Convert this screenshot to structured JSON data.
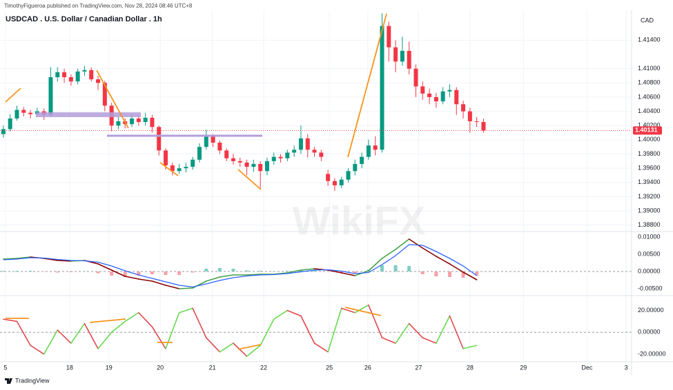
{
  "header": {
    "publisher": "TimothyFigueroa published on TradingView.com, Nov 28, 2024 08:46 UTC+8",
    "brand": "TradingView",
    "watermark": "WikiFX"
  },
  "chart_data": [
    {
      "type": "candlestick",
      "title": "USDCAD . U.S. Dollar / Canadian Dollar . 1h",
      "currency": "CAD",
      "up_color": "#089981",
      "down_color": "#f23645",
      "grid": true,
      "xlim": [
        -0.5,
        92.9
      ],
      "xticks": [
        {
          "value": 0.3,
          "label": "5"
        },
        {
          "value": 9.8,
          "label": "18"
        },
        {
          "value": 15.6,
          "label": "19"
        },
        {
          "value": 23.2,
          "label": "20"
        },
        {
          "value": 30.9,
          "label": "21"
        },
        {
          "value": 38.5,
          "label": "22"
        },
        {
          "value": 48.2,
          "label": "25"
        },
        {
          "value": 53.9,
          "label": "26"
        },
        {
          "value": 61.4,
          "label": "27"
        },
        {
          "value": 69,
          "label": "28"
        },
        {
          "value": 76.9,
          "label": "29"
        },
        {
          "value": 86.3,
          "label": "Dec"
        },
        {
          "value": 92.1,
          "label": "3"
        }
      ],
      "ylim": [
        1.3872,
        1.4182
      ],
      "yticks": [
        {
          "value": 1.414,
          "label": "1.41400"
        },
        {
          "value": 1.41,
          "label": "1.41000"
        },
        {
          "value": 1.408,
          "label": "1.40800"
        },
        {
          "value": 1.406,
          "label": "1.40600"
        },
        {
          "value": 1.404,
          "label": "1.40400"
        },
        {
          "value": 1.402,
          "label": "1.40200"
        },
        {
          "value": 1.4,
          "label": "1.40000"
        },
        {
          "value": 1.398,
          "label": "1.39800"
        },
        {
          "value": 1.396,
          "label": "1.39600"
        },
        {
          "value": 1.394,
          "label": "1.39400"
        },
        {
          "value": 1.392,
          "label": "1.39200"
        },
        {
          "value": 1.39,
          "label": "1.39000"
        },
        {
          "value": 1.388,
          "label": "1.38800"
        }
      ],
      "open": [
        1.4008,
        1.4015,
        1.403,
        1.4042,
        1.4038,
        1.4036,
        1.404,
        1.4035,
        1.4088,
        1.4095,
        1.4088,
        1.4082,
        1.4096,
        1.4098,
        1.4085,
        1.408,
        1.4048,
        1.402,
        1.4026,
        1.4022,
        1.403,
        1.4025,
        1.4031,
        1.4018,
        1.3985,
        1.3964,
        1.3956,
        1.396,
        1.3962,
        1.3972,
        1.399,
        1.4005,
        1.3996,
        1.3985,
        1.3974,
        1.397,
        1.3968,
        1.3962,
        1.3966,
        1.3956,
        1.397,
        1.3976,
        1.3974,
        1.3982,
        1.3986,
        1.4002,
        1.3986,
        1.3982,
        1.3952,
        1.3942,
        1.3936,
        1.3944,
        1.3956,
        1.3966,
        1.3976,
        1.3992,
        1.3986,
        1.416,
        1.413,
        1.411,
        1.4125,
        1.41,
        1.4075,
        1.4065,
        1.406,
        1.4054,
        1.4068,
        1.407,
        1.405,
        1.404,
        1.4026,
        1.4025
      ],
      "high": [
        1.402,
        1.4036,
        1.4048,
        1.4046,
        1.4042,
        1.4045,
        1.4044,
        1.4102,
        1.4102,
        1.41,
        1.4092,
        1.41,
        1.4104,
        1.4102,
        1.409,
        1.4083,
        1.4052,
        1.4032,
        1.403,
        1.4036,
        1.4034,
        1.4038,
        1.4035,
        1.402,
        1.3988,
        1.3968,
        1.3966,
        1.3968,
        1.3976,
        1.3995,
        1.4014,
        1.4008,
        1.3999,
        1.3988,
        1.398,
        1.3975,
        1.3972,
        1.3972,
        1.397,
        1.3975,
        1.3982,
        1.398,
        1.3986,
        1.3992,
        1.402,
        1.4008,
        1.399,
        1.3986,
        1.3958,
        1.3946,
        1.3948,
        1.396,
        1.3972,
        1.3982,
        1.4,
        1.4005,
        1.4178,
        1.4166,
        1.414,
        1.4145,
        1.4138,
        1.4106,
        1.4082,
        1.4072,
        1.4066,
        1.4074,
        1.4078,
        1.4074,
        1.4055,
        1.4045,
        1.4032,
        1.403
      ],
      "low": [
        1.4003,
        1.4012,
        1.4027,
        1.4033,
        1.403,
        1.4032,
        1.4028,
        1.4032,
        1.4082,
        1.408,
        1.4076,
        1.4078,
        1.409,
        1.4082,
        1.407,
        1.404,
        1.4012,
        1.4015,
        1.4016,
        1.4018,
        1.402,
        1.402,
        1.401,
        1.3978,
        1.3958,
        1.395,
        1.3952,
        1.3954,
        1.3958,
        1.3968,
        1.3986,
        1.399,
        1.398,
        1.397,
        1.3965,
        1.3962,
        1.395,
        1.3955,
        1.3932,
        1.395,
        1.3965,
        1.3968,
        1.397,
        1.3976,
        1.398,
        1.3975,
        1.3976,
        1.397,
        1.3935,
        1.3928,
        1.3932,
        1.394,
        1.395,
        1.396,
        1.3972,
        1.3978,
        1.3982,
        1.411,
        1.4095,
        1.4104,
        1.4092,
        1.406,
        1.4056,
        1.405,
        1.4045,
        1.405,
        1.406,
        1.4035,
        1.403,
        1.401,
        1.4018,
        1.401
      ],
      "close": [
        1.4015,
        1.403,
        1.4042,
        1.4038,
        1.4036,
        1.404,
        1.4035,
        1.4088,
        1.4095,
        1.4088,
        1.4082,
        1.4096,
        1.4098,
        1.4085,
        1.408,
        1.4048,
        1.402,
        1.4026,
        1.4022,
        1.403,
        1.4025,
        1.4031,
        1.4018,
        1.3985,
        1.3964,
        1.3956,
        1.396,
        1.3962,
        1.3972,
        1.399,
        1.4005,
        1.3996,
        1.3985,
        1.3974,
        1.397,
        1.3968,
        1.3962,
        1.3966,
        1.3956,
        1.397,
        1.3976,
        1.3974,
        1.3982,
        1.3986,
        1.4002,
        1.3986,
        1.3982,
        1.3976,
        1.3942,
        1.3936,
        1.3944,
        1.3956,
        1.3966,
        1.3976,
        1.3992,
        1.3986,
        1.416,
        1.413,
        1.411,
        1.4125,
        1.41,
        1.4075,
        1.4065,
        1.406,
        1.4054,
        1.4068,
        1.407,
        1.405,
        1.404,
        1.4026,
        1.4025,
        1.40131
      ]
    },
    {
      "type": "line",
      "ylim": [
        -0.0068,
        0.0114
      ],
      "yticks": [
        {
          "value": 0.01,
          "label": "0.01000"
        },
        {
          "value": 0.005,
          "label": "0.00500"
        },
        {
          "value": 0,
          "label": "0.00000"
        },
        {
          "value": -0.005,
          "label": "-0.00500"
        }
      ],
      "x": [
        0,
        2,
        4,
        6,
        8,
        10,
        12,
        14,
        16,
        18,
        20,
        22,
        24,
        26,
        28,
        30,
        32,
        34,
        36,
        38,
        40,
        42,
        44,
        46,
        48,
        50,
        52,
        54,
        56,
        58,
        60,
        62,
        64,
        66,
        68,
        70
      ],
      "series": [
        {
          "up_color": "#43a047",
          "down_color": "#8b0000",
          "values": [
            0.0036,
            0.0038,
            0.0042,
            0.0038,
            0.0032,
            0.003,
            0.0032,
            0.0022,
            0.0004,
            -0.0014,
            -0.0022,
            -0.0028,
            -0.004,
            -0.005,
            -0.0048,
            -0.0028,
            -0.0016,
            -0.001,
            -0.001,
            -0.0008,
            -0.0008,
            -0.0004,
            0.0004,
            0.0008,
            0.0004,
            -0.0004,
            -0.0012,
            0.0002,
            0.0038,
            0.0064,
            0.0094,
            0.0068,
            0.0044,
            0.0022,
            -0.0002,
            -0.0024
          ]
        },
        {
          "color": "#2962ff",
          "values": [
            0.0034,
            0.0036,
            0.004,
            0.0039,
            0.0035,
            0.0032,
            0.0031,
            0.0027,
            0.0016,
            0.0002,
            -0.001,
            -0.002,
            -0.003,
            -0.004,
            -0.0045,
            -0.0036,
            -0.0026,
            -0.0018,
            -0.0013,
            -0.001,
            -0.0009,
            -0.0006,
            -0.0001,
            0.0004,
            0.0005,
            0.0001,
            -0.0006,
            -0.0003,
            0.002,
            0.0046,
            0.0078,
            0.0076,
            0.0058,
            0.0038,
            0.0016,
            -0.0012
          ]
        }
      ],
      "histogram": {
        "up_color": "#7fcdc4",
        "down_color": "#f7a1a8",
        "values": [
          0.0002,
          0.0002,
          0.0002,
          -0.0001,
          -0.0003,
          -0.0002,
          0.0001,
          -0.0005,
          -0.0012,
          -0.0016,
          -0.0012,
          -0.0008,
          -0.001,
          -0.001,
          -0.0003,
          0.0008,
          0.001,
          0.0008,
          0.0003,
          0.0002,
          0.0001,
          0.0002,
          0.0005,
          0.0004,
          -0.0001,
          -0.0005,
          -0.0006,
          0.0005,
          0.0018,
          0.0018,
          0.0016,
          -0.0008,
          -0.0014,
          -0.0016,
          -0.0018,
          -0.0012
        ]
      }
    },
    {
      "type": "line",
      "ylim": [
        -27,
        33
      ],
      "yticks": [
        {
          "value": 20,
          "label": "20.00000"
        },
        {
          "value": 0,
          "label": "0.00000"
        },
        {
          "value": -20,
          "label": "-20.00000"
        }
      ],
      "x": [
        0,
        2,
        4,
        6,
        8,
        10,
        12,
        14,
        16,
        18,
        20,
        22,
        24,
        26,
        28,
        30,
        32,
        34,
        36,
        38,
        40,
        42,
        44,
        46,
        48,
        50,
        52,
        54,
        56,
        58,
        60,
        62,
        64,
        66,
        68,
        70
      ],
      "series": [
        {
          "up_color": "#66d94e",
          "down_color": "#e0474c",
          "values": [
            12,
            10,
            -12,
            -20,
            2,
            -10,
            8,
            -15,
            0,
            10,
            18,
            5,
            -15,
            18,
            22,
            -5,
            -18,
            -10,
            -22,
            -12,
            12,
            20,
            15,
            -10,
            -18,
            22,
            18,
            25,
            -5,
            -10,
            8,
            -5,
            -10,
            15,
            -15,
            -12
          ]
        }
      ]
    }
  ]
}
